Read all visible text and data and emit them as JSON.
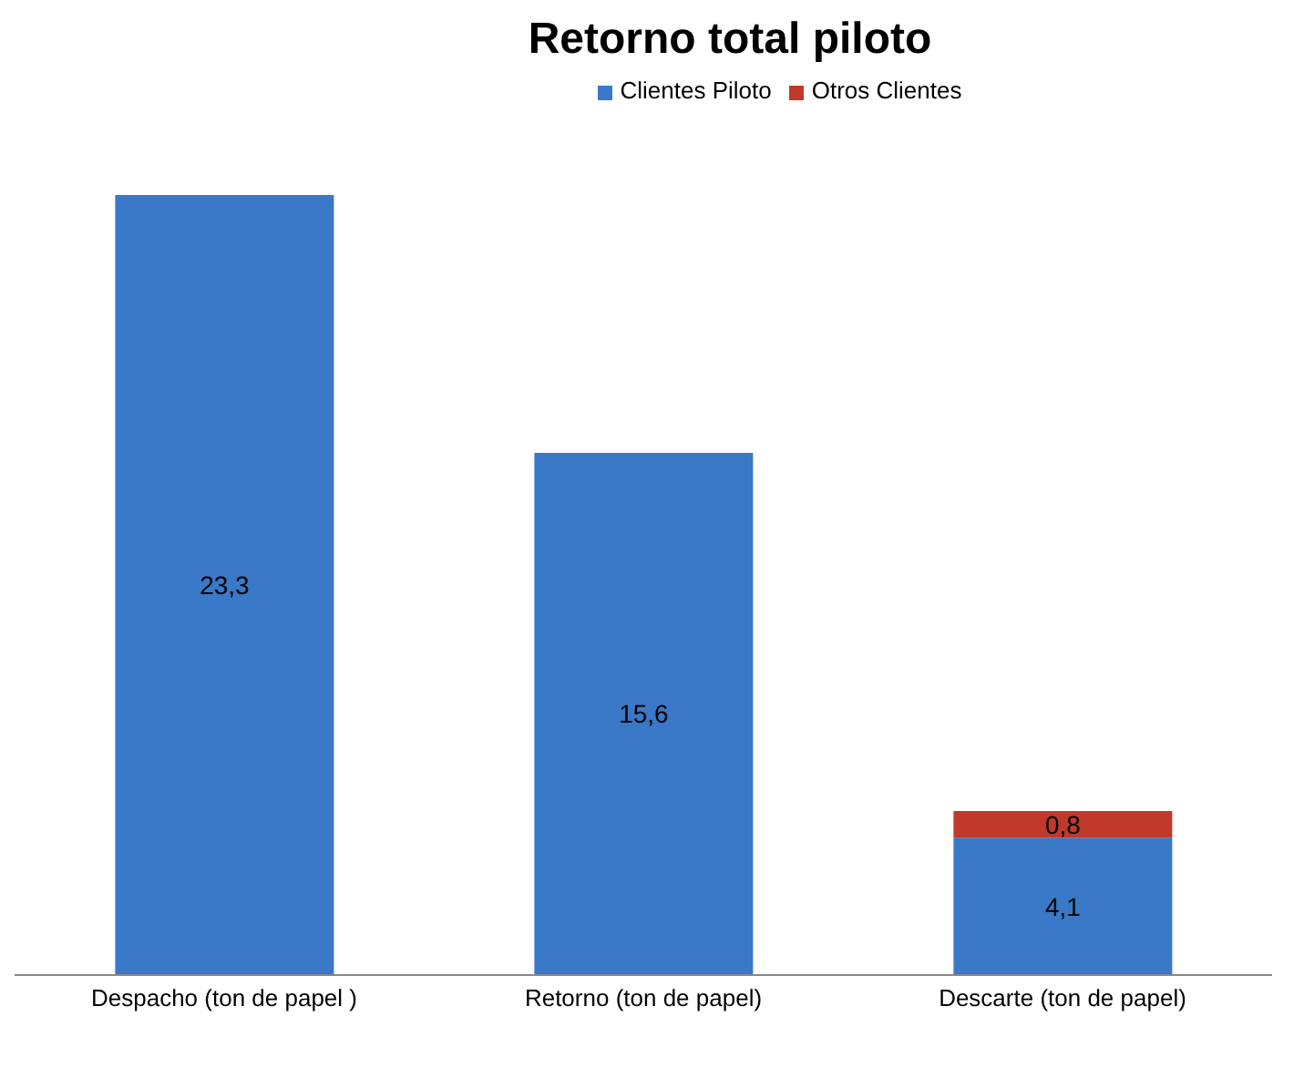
{
  "chart_data": {
    "type": "bar",
    "title": "Retorno total piloto",
    "stacked": true,
    "legend": "top",
    "grid": false,
    "categories": [
      "Despacho (ton de papel )",
      "Retorno (ton de papel)",
      "Descarte (ton de papel)"
    ],
    "series": [
      {
        "name": "Clientes Piloto",
        "color": "#3a78c8",
        "values": [
          23.3,
          15.6,
          4.1
        ],
        "value_labels": [
          "23,3",
          "15,6",
          "4,1"
        ]
      },
      {
        "name": "Otros Clientes",
        "color": "#c0392b",
        "values": [
          0,
          0,
          0.8
        ],
        "value_labels": [
          null,
          null,
          "0,8"
        ]
      }
    ]
  }
}
